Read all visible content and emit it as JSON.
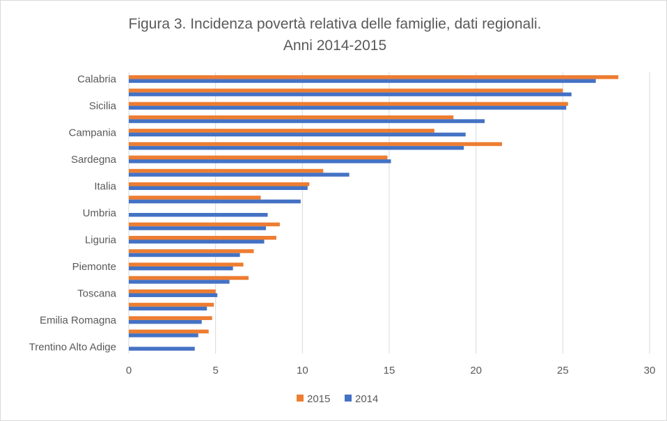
{
  "chart_data": {
    "type": "bar",
    "orientation": "horizontal",
    "title_lines": [
      "Figura 3. Incidenza povertà relativa delle famiglie, dati regionali.",
      "Anni 2014-2015"
    ],
    "xlim": [
      0,
      30
    ],
    "x_ticks": [
      0,
      5,
      10,
      15,
      20,
      25,
      30
    ],
    "grid": true,
    "legend_position": "bottom",
    "categories": [
      "Calabria",
      "",
      "Sicilia",
      "",
      "Campania",
      "",
      "Sardegna",
      "",
      "Italia",
      "",
      "Umbria",
      "",
      "Liguria",
      "",
      "Piemonte",
      "",
      "Toscana",
      "",
      "Emilia Romagna",
      "",
      "Trentino Alto Adige"
    ],
    "series": [
      {
        "name": "2015",
        "color": "#ed7d31",
        "values": [
          28.2,
          25.0,
          25.3,
          18.7,
          17.6,
          21.5,
          14.9,
          11.2,
          10.4,
          7.6,
          null,
          8.7,
          8.5,
          7.2,
          6.6,
          6.9,
          5.0,
          4.9,
          4.8,
          4.6,
          null
        ]
      },
      {
        "name": "2014",
        "color": "#4472c4",
        "values": [
          26.9,
          25.5,
          25.2,
          20.5,
          19.4,
          19.3,
          15.1,
          12.7,
          10.3,
          9.9,
          8.0,
          7.9,
          7.8,
          6.4,
          6.0,
          5.8,
          5.1,
          4.5,
          4.2,
          4.0,
          3.8
        ]
      }
    ]
  }
}
